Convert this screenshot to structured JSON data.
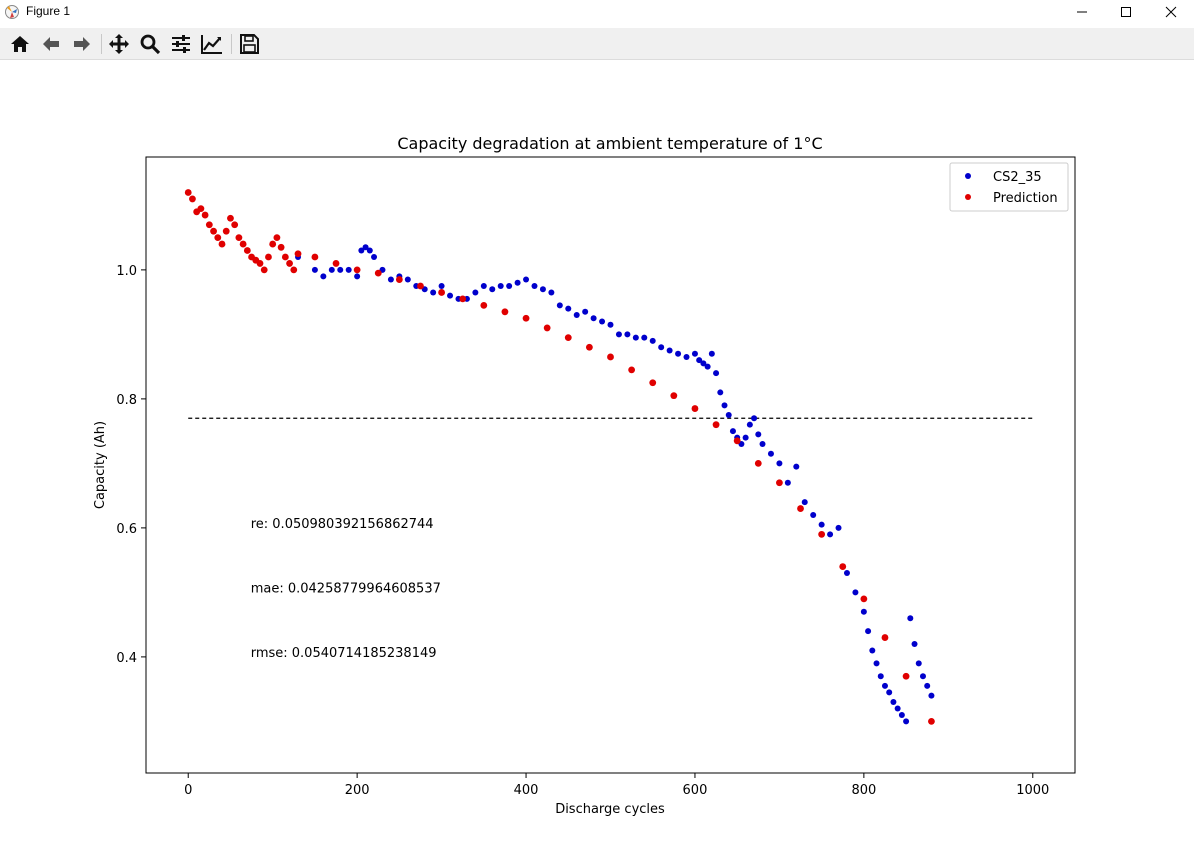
{
  "window": {
    "title": "Figure 1"
  },
  "toolbar": {
    "tools": [
      {
        "icon": "home-icon"
      },
      {
        "icon": "back-arrow-icon"
      },
      {
        "icon": "forward-arrow-icon"
      },
      {
        "icon": "pan-icon"
      },
      {
        "icon": "zoom-icon"
      },
      {
        "icon": "subplots-config-icon"
      },
      {
        "icon": "edit-axis-icon"
      },
      {
        "icon": "save-icon"
      }
    ]
  },
  "colors": {
    "series_measured": "#0000cc",
    "series_prediction": "#e00000",
    "threshold": "#000000"
  },
  "chart_data": {
    "type": "scatter",
    "title": "Capacity degradation at ambient temperature of 1°C",
    "xlabel": "Discharge cycles",
    "ylabel": "Capacity (Ah)",
    "xlim": [
      -50,
      1050
    ],
    "ylim": [
      0.22,
      1.175
    ],
    "xticks": [
      0,
      200,
      400,
      600,
      800,
      1000
    ],
    "yticks": [
      0.4,
      0.6,
      0.8,
      1.0
    ],
    "xtick_labels": [
      "0",
      "200",
      "400",
      "600",
      "800",
      "1000"
    ],
    "ytick_labels": [
      "0.4",
      "0.6",
      "0.8",
      "1.0"
    ],
    "legend": {
      "position": "top-right",
      "entries": [
        "CS2_35",
        "Prediction"
      ]
    },
    "threshold": {
      "y": 0.77,
      "x": [
        0,
        1000
      ],
      "style": "dashed"
    },
    "annotations": [
      {
        "text": "re: 0.050980392156862744",
        "x": 74,
        "y": 0.6
      },
      {
        "text": "mae: 0.04258779964608537",
        "x": 74,
        "y": 0.5
      },
      {
        "text": "rmse: 0.0540714185238149",
        "x": 74,
        "y": 0.4
      }
    ],
    "series": [
      {
        "name": "CS2_35",
        "x": [
          130,
          150,
          160,
          170,
          180,
          190,
          200,
          205,
          210,
          215,
          220,
          230,
          240,
          250,
          260,
          270,
          280,
          290,
          300,
          310,
          320,
          330,
          340,
          350,
          360,
          370,
          380,
          390,
          400,
          410,
          420,
          430,
          440,
          450,
          460,
          470,
          480,
          490,
          500,
          510,
          520,
          530,
          540,
          550,
          560,
          570,
          580,
          590,
          600,
          605,
          610,
          615,
          620,
          625,
          630,
          635,
          640,
          645,
          650,
          655,
          660,
          665,
          670,
          675,
          680,
          690,
          700,
          710,
          720,
          730,
          740,
          750,
          760,
          770,
          780,
          790,
          800,
          805,
          810,
          815,
          820,
          825,
          830,
          835,
          840,
          845,
          850,
          855,
          860,
          865,
          870,
          875,
          880
        ],
        "y": [
          1.02,
          1.0,
          0.99,
          1.0,
          1.0,
          1.0,
          0.99,
          1.03,
          1.035,
          1.03,
          1.02,
          1.0,
          0.985,
          0.99,
          0.985,
          0.975,
          0.97,
          0.965,
          0.975,
          0.96,
          0.955,
          0.955,
          0.965,
          0.975,
          0.97,
          0.975,
          0.975,
          0.98,
          0.985,
          0.975,
          0.97,
          0.965,
          0.945,
          0.94,
          0.93,
          0.935,
          0.925,
          0.92,
          0.915,
          0.9,
          0.9,
          0.895,
          0.895,
          0.89,
          0.88,
          0.875,
          0.87,
          0.865,
          0.87,
          0.86,
          0.855,
          0.85,
          0.87,
          0.84,
          0.81,
          0.79,
          0.775,
          0.75,
          0.74,
          0.73,
          0.74,
          0.76,
          0.77,
          0.745,
          0.73,
          0.715,
          0.7,
          0.67,
          0.695,
          0.64,
          0.62,
          0.605,
          0.59,
          0.6,
          0.53,
          0.5,
          0.47,
          0.44,
          0.41,
          0.39,
          0.37,
          0.355,
          0.345,
          0.33,
          0.32,
          0.31,
          0.3,
          0.46,
          0.42,
          0.39,
          0.37,
          0.355,
          0.34
        ]
      },
      {
        "name": "Prediction",
        "x": [
          0,
          5,
          10,
          15,
          20,
          25,
          30,
          35,
          40,
          45,
          50,
          55,
          60,
          65,
          70,
          75,
          80,
          85,
          90,
          95,
          100,
          105,
          110,
          115,
          120,
          125,
          130,
          150,
          175,
          200,
          225,
          250,
          275,
          300,
          325,
          350,
          375,
          400,
          425,
          450,
          475,
          500,
          525,
          550,
          575,
          600,
          625,
          650,
          675,
          700,
          725,
          750,
          775,
          800,
          825,
          850,
          880
        ],
        "y": [
          1.12,
          1.11,
          1.09,
          1.095,
          1.085,
          1.07,
          1.06,
          1.05,
          1.04,
          1.06,
          1.08,
          1.07,
          1.05,
          1.04,
          1.03,
          1.02,
          1.015,
          1.01,
          1.0,
          1.02,
          1.04,
          1.05,
          1.035,
          1.02,
          1.01,
          1.0,
          1.025,
          1.02,
          1.01,
          1.0,
          0.995,
          0.985,
          0.975,
          0.965,
          0.955,
          0.945,
          0.935,
          0.925,
          0.91,
          0.895,
          0.88,
          0.865,
          0.845,
          0.825,
          0.805,
          0.785,
          0.76,
          0.735,
          0.7,
          0.67,
          0.63,
          0.59,
          0.54,
          0.49,
          0.43,
          0.37,
          0.3
        ]
      }
    ]
  }
}
